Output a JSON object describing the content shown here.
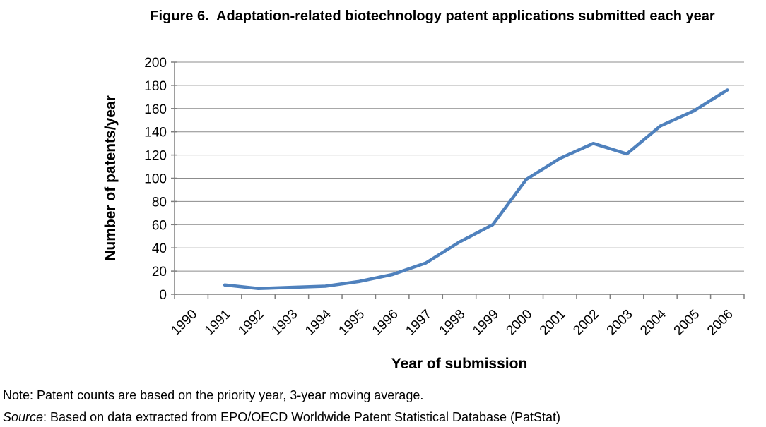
{
  "chart_data": {
    "type": "line",
    "title": "Figure 6.  Adaptation-related biotechnology patent applications submitted each year",
    "xlabel": "Year of submission",
    "ylabel": "Number of patents/year",
    "categories": [
      "1990",
      "1991",
      "1992",
      "1993",
      "1994",
      "1995",
      "1996",
      "1997",
      "1998",
      "1999",
      "2000",
      "2001",
      "2002",
      "2003",
      "2004",
      "2005",
      "2006"
    ],
    "values": [
      null,
      8,
      5,
      6,
      7,
      11,
      17,
      27,
      45,
      60,
      99,
      117,
      130,
      121,
      145,
      158,
      176
    ],
    "ylim": [
      0,
      200
    ],
    "ytick_step": 20,
    "grid": "horizontal",
    "legend": "none",
    "line_color": "#4F81BD",
    "axis_color": "#7F7F7F",
    "gridline_color": "#8C8C8C",
    "label_color": "#000000"
  },
  "footnotes": {
    "note": "Note: Patent counts are based on the priority year, 3-year moving average.",
    "source_label": "Source",
    "source_rest": ": Based on data extracted from EPO/OECD Worldwide Patent Statistical Database (PatStat)"
  }
}
